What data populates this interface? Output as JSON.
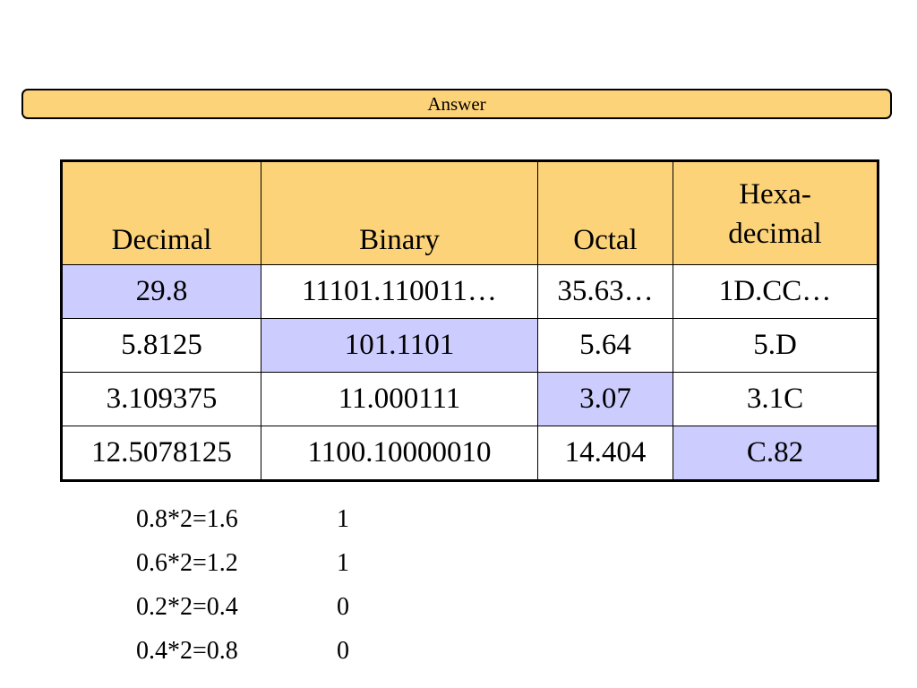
{
  "title_bar": {
    "label": "Answer"
  },
  "table": {
    "headers": {
      "decimal": "Decimal",
      "binary": "Binary",
      "octal": "Octal",
      "hex_line1": "Hexa-",
      "hex_line2": "decimal"
    },
    "rows": [
      {
        "decimal": "29.8",
        "binary": "11101.110011…",
        "octal": "35.63…",
        "hex": "1D.CC…",
        "given": "decimal"
      },
      {
        "decimal": "5.8125",
        "binary": "101.1101",
        "octal": "5.64",
        "hex": "5.D",
        "given": "binary"
      },
      {
        "decimal": "3.109375",
        "binary": "11.000111",
        "octal": "3.07",
        "hex": "3.1C",
        "given": "octal"
      },
      {
        "decimal": "12.5078125",
        "binary": "1100.10000010",
        "octal": "14.404",
        "hex": "C.82",
        "given": "hex"
      }
    ],
    "colors": {
      "header_bg": "#fdd37a",
      "given_bg": "#ccccff"
    }
  },
  "steps": [
    {
      "expr": "0.8*2=1.6",
      "bit": "1"
    },
    {
      "expr": "0.6*2=1.2",
      "bit": "1"
    },
    {
      "expr": "0.2*2=0.4",
      "bit": "0"
    },
    {
      "expr": "0.4*2=0.8",
      "bit": "0"
    }
  ]
}
